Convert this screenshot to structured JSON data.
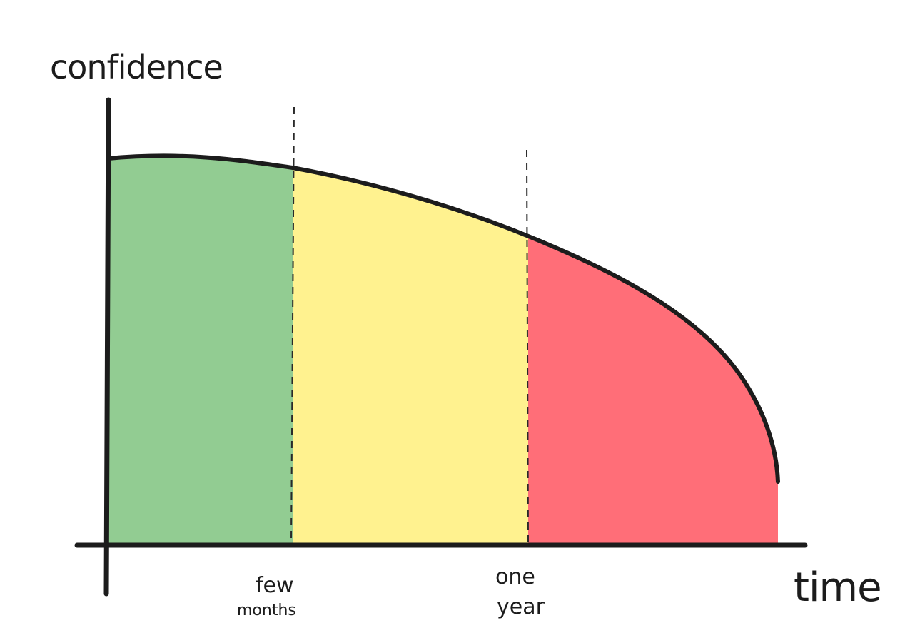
{
  "diagram": {
    "y_axis_label": "confidence",
    "x_axis_label": "time",
    "markers": [
      {
        "line1": "few",
        "line2": "months"
      },
      {
        "line1": "one",
        "line2": "year"
      }
    ],
    "zones": [
      {
        "name": "green",
        "color": "#92cc92"
      },
      {
        "name": "yellow",
        "color": "#fff28f"
      },
      {
        "name": "red",
        "color": "#ff6e78"
      }
    ],
    "line_color": "#1c1c1c"
  }
}
